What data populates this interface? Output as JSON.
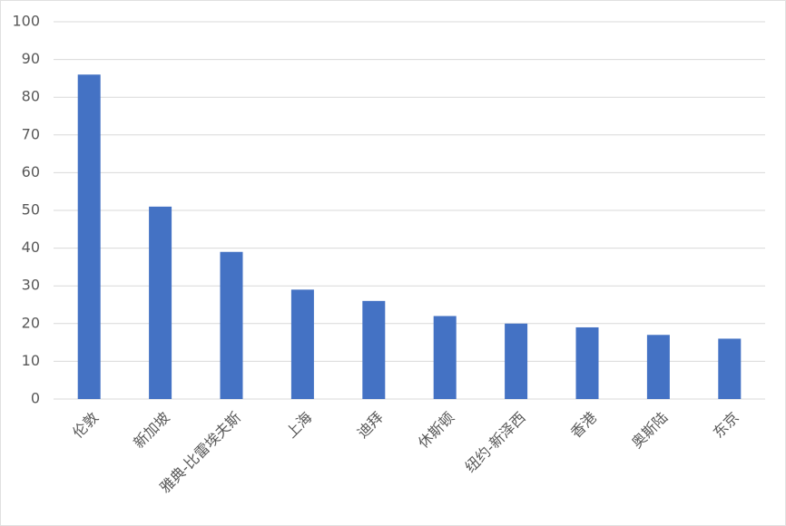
{
  "chart_data": {
    "type": "bar",
    "categories": [
      "伦敦",
      "新加坡",
      "雅典-比雷埃夫斯",
      "上海",
      "迪拜",
      "休斯顿",
      "纽约-新泽西",
      "香港",
      "奥斯陆",
      "东京"
    ],
    "values": [
      86,
      51,
      39,
      29,
      26,
      22,
      20,
      19,
      17,
      16
    ],
    "color": "#4472c4",
    "ylim": [
      0,
      100
    ],
    "yticks": [
      0,
      10,
      20,
      30,
      40,
      50,
      60,
      70,
      80,
      90,
      100
    ],
    "grid": true
  }
}
